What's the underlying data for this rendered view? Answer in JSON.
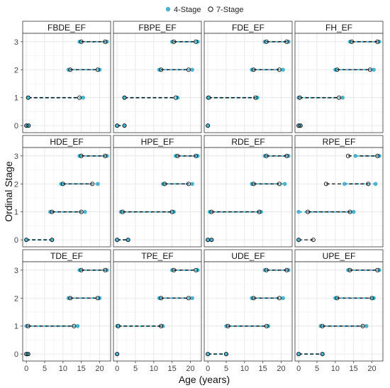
{
  "chart_data": {
    "type": "scatter",
    "xlabel": "Age (years)",
    "ylabel": "Ordinal Stage",
    "xlim": [
      -1,
      23
    ],
    "ylim": [
      -0.25,
      3.3
    ],
    "x_ticks": [
      0,
      5,
      10,
      15,
      20
    ],
    "y_ticks": [
      0,
      1,
      2,
      3
    ],
    "grid": true,
    "legend_position": "top",
    "legend": [
      {
        "label": "4-Stage",
        "color": "#4BB3CF",
        "marker": "filled-circle"
      },
      {
        "label": "7-Stage",
        "color": "#111111",
        "marker": "open-circle"
      }
    ],
    "panels": [
      {
        "name": "FBDE_EF",
        "series": [
          {
            "name": "4-Stage",
            "points": [
              [
                0,
                0
              ],
              [
                0.5,
                0
              ],
              [
                0.5,
                1
              ],
              [
                15.5,
                1
              ],
              [
                11.5,
                2
              ],
              [
                20,
                2
              ],
              [
                14.5,
                3
              ],
              [
                22,
                3
              ]
            ]
          },
          {
            "name": "7-Stage",
            "points": [
              [
                0,
                0
              ],
              [
                0.6,
                0
              ],
              [
                0.5,
                1
              ],
              [
                14.5,
                1
              ],
              [
                12,
                2
              ],
              [
                19.5,
                2
              ],
              [
                15,
                3
              ],
              [
                21.5,
                3
              ]
            ]
          }
        ]
      },
      {
        "name": "FBPE_EF",
        "series": [
          {
            "name": "4-Stage",
            "points": [
              [
                0,
                0
              ],
              [
                2,
                0
              ],
              [
                2,
                1
              ],
              [
                16.5,
                1
              ],
              [
                11.5,
                2
              ],
              [
                20.5,
                2
              ],
              [
                15,
                3
              ],
              [
                22,
                3
              ]
            ]
          },
          {
            "name": "7-Stage",
            "points": [
              [
                0,
                0
              ],
              [
                2,
                0
              ],
              [
                2,
                1
              ],
              [
                16,
                1
              ],
              [
                12,
                2
              ],
              [
                19.5,
                2
              ],
              [
                15.5,
                3
              ],
              [
                21.5,
                3
              ]
            ]
          }
        ]
      },
      {
        "name": "FDE_EF",
        "series": [
          {
            "name": "4-Stage",
            "points": [
              [
                0,
                0
              ],
              [
                0,
                1
              ],
              [
                13.5,
                1
              ],
              [
                12,
                2
              ],
              [
                20.5,
                2
              ],
              [
                15.5,
                3
              ],
              [
                22,
                3
              ]
            ]
          },
          {
            "name": "7-Stage",
            "points": [
              [
                0,
                0
              ],
              [
                0.2,
                1
              ],
              [
                13,
                1
              ],
              [
                12.5,
                2
              ],
              [
                19.5,
                2
              ],
              [
                16,
                3
              ],
              [
                21.5,
                3
              ]
            ]
          }
        ]
      },
      {
        "name": "FH_EF",
        "series": [
          {
            "name": "4-Stage",
            "points": [
              [
                0,
                0
              ],
              [
                0.5,
                0
              ],
              [
                0,
                1
              ],
              [
                12,
                1
              ],
              [
                10,
                2
              ],
              [
                20.5,
                2
              ],
              [
                14,
                3
              ],
              [
                22,
                3
              ]
            ]
          },
          {
            "name": "7-Stage",
            "points": [
              [
                0,
                0
              ],
              [
                0.5,
                0
              ],
              [
                0.3,
                1
              ],
              [
                11,
                1
              ],
              [
                10.5,
                2
              ],
              [
                19.5,
                2
              ],
              [
                14.5,
                3
              ],
              [
                21.5,
                3
              ]
            ]
          }
        ]
      },
      {
        "name": "HDE_EF",
        "series": [
          {
            "name": "4-Stage",
            "points": [
              [
                0,
                0
              ],
              [
                7,
                0
              ],
              [
                6.5,
                1
              ],
              [
                16,
                1
              ],
              [
                9.5,
                2
              ],
              [
                19.5,
                2
              ],
              [
                14.5,
                3
              ],
              [
                22,
                3
              ]
            ]
          },
          {
            "name": "7-Stage",
            "points": [
              [
                0,
                0
              ],
              [
                7,
                0
              ],
              [
                7,
                1
              ],
              [
                15,
                1
              ],
              [
                10,
                2
              ],
              [
                18,
                2
              ],
              [
                15,
                3
              ],
              [
                21.5,
                3
              ]
            ]
          }
        ]
      },
      {
        "name": "HPE_EF",
        "series": [
          {
            "name": "4-Stage",
            "points": [
              [
                0,
                0
              ],
              [
                3,
                0
              ],
              [
                1,
                1
              ],
              [
                15.5,
                1
              ],
              [
                12.5,
                2
              ],
              [
                20.5,
                2
              ],
              [
                16,
                3
              ],
              [
                22,
                3
              ]
            ]
          },
          {
            "name": "7-Stage",
            "points": [
              [
                0,
                0
              ],
              [
                3,
                0
              ],
              [
                1.5,
                1
              ],
              [
                15,
                1
              ],
              [
                13,
                2
              ],
              [
                19.5,
                2
              ],
              [
                16.5,
                3
              ],
              [
                21.5,
                3
              ]
            ]
          }
        ]
      },
      {
        "name": "RDE_EF",
        "series": [
          {
            "name": "4-Stage",
            "points": [
              [
                0,
                0
              ],
              [
                1,
                0
              ],
              [
                0.5,
                1
              ],
              [
                14.5,
                1
              ],
              [
                12,
                2
              ],
              [
                21,
                2
              ],
              [
                15.5,
                3
              ],
              [
                22,
                3
              ]
            ]
          },
          {
            "name": "7-Stage",
            "points": [
              [
                0,
                0
              ],
              [
                1,
                0
              ],
              [
                1,
                1
              ],
              [
                14,
                1
              ],
              [
                12.5,
                2
              ],
              [
                19.5,
                2
              ],
              [
                16,
                3
              ],
              [
                21.5,
                3
              ]
            ]
          }
        ]
      },
      {
        "name": "RPE_EF",
        "series": [
          {
            "name": "4-Stage",
            "points": [
              [
                0,
                0
              ],
              [
                0,
                1
              ],
              [
                15,
                1
              ],
              [
                12.5,
                2
              ],
              [
                21,
                2
              ],
              [
                15.5,
                3
              ],
              [
                22,
                3
              ]
            ]
          },
          {
            "name": "7-Stage",
            "points": [
              [
                0,
                0
              ],
              [
                4,
                0
              ],
              [
                2.5,
                1
              ],
              [
                14,
                1
              ],
              [
                7.5,
                2
              ],
              [
                19,
                2
              ],
              [
                13.5,
                3
              ],
              [
                21.5,
                3
              ]
            ]
          }
        ]
      },
      {
        "name": "TDE_EF",
        "series": [
          {
            "name": "4-Stage",
            "points": [
              [
                0,
                0
              ],
              [
                0.5,
                0
              ],
              [
                0,
                1
              ],
              [
                14,
                1
              ],
              [
                11.5,
                2
              ],
              [
                20,
                2
              ],
              [
                14.5,
                3
              ],
              [
                22,
                3
              ]
            ]
          },
          {
            "name": "7-Stage",
            "points": [
              [
                0,
                0
              ],
              [
                0.5,
                0
              ],
              [
                0.5,
                1
              ],
              [
                13,
                1
              ],
              [
                12,
                2
              ],
              [
                19.5,
                2
              ],
              [
                15,
                3
              ],
              [
                21.5,
                3
              ]
            ]
          }
        ]
      },
      {
        "name": "TPE_EF",
        "series": [
          {
            "name": "4-Stage",
            "points": [
              [
                0,
                0
              ],
              [
                0,
                1
              ],
              [
                12.5,
                1
              ],
              [
                11.5,
                2
              ],
              [
                20.5,
                2
              ],
              [
                15,
                3
              ],
              [
                22,
                3
              ]
            ]
          },
          {
            "name": "7-Stage",
            "points": [
              [
                0,
                0
              ],
              [
                0.3,
                1
              ],
              [
                12,
                1
              ],
              [
                12,
                2
              ],
              [
                19.5,
                2
              ],
              [
                15.5,
                3
              ],
              [
                21.5,
                3
              ]
            ]
          }
        ]
      },
      {
        "name": "UDE_EF",
        "series": [
          {
            "name": "4-Stage",
            "points": [
              [
                0,
                0
              ],
              [
                5,
                0
              ],
              [
                5,
                1
              ],
              [
                16.5,
                1
              ],
              [
                12,
                2
              ],
              [
                20.5,
                2
              ],
              [
                15.5,
                3
              ],
              [
                22,
                3
              ]
            ]
          },
          {
            "name": "7-Stage",
            "points": [
              [
                0,
                0
              ],
              [
                5,
                0
              ],
              [
                5.5,
                1
              ],
              [
                16,
                1
              ],
              [
                12.5,
                2
              ],
              [
                19.5,
                2
              ],
              [
                16,
                3
              ],
              [
                21.5,
                3
              ]
            ]
          }
        ]
      },
      {
        "name": "UPE_EF",
        "series": [
          {
            "name": "4-Stage",
            "points": [
              [
                0,
                0
              ],
              [
                6.5,
                0
              ],
              [
                6,
                1
              ],
              [
                18.5,
                1
              ],
              [
                10,
                2
              ],
              [
                20.5,
                2
              ],
              [
                13.5,
                3
              ],
              [
                22,
                3
              ]
            ]
          },
          {
            "name": "7-Stage",
            "points": [
              [
                0,
                0
              ],
              [
                6.5,
                0
              ],
              [
                6.5,
                1
              ],
              [
                17.5,
                1
              ],
              [
                10.5,
                2
              ],
              [
                20,
                2
              ],
              [
                14,
                3
              ],
              [
                21.5,
                3
              ]
            ]
          }
        ]
      }
    ]
  }
}
